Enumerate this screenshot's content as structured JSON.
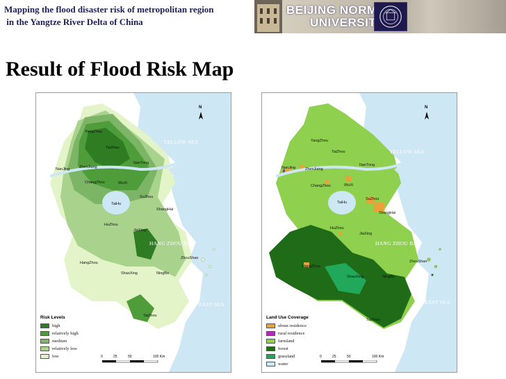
{
  "header": {
    "title_line1": "Mapping the flood disaster risk of metropolitan region",
    "title_line2": " in the Yangtze River Delta of China",
    "university_line1": "BEIJING NORMAL",
    "university_line2": "UNIVERSITY"
  },
  "slide_title": "Result of Flood Risk Map",
  "left_map": {
    "legend_title": "Risk Levels",
    "legend": [
      {
        "label": "high",
        "color": "#2f7d22"
      },
      {
        "label": "relatively high",
        "color": "#4f9c3a"
      },
      {
        "label": "medium",
        "color": "#7bb565"
      },
      {
        "label": "relatively low",
        "color": "#a9d28d"
      },
      {
        "label": "low",
        "color": "#e4f4c9"
      }
    ]
  },
  "right_map": {
    "legend_title": "Land Use Coverage",
    "legend": [
      {
        "label": "ubran residence",
        "color": "#e8a23a"
      },
      {
        "label": "rural residence",
        "color": "#b42ab4"
      },
      {
        "label": "farmland",
        "color": "#8fd14f"
      },
      {
        "label": "forest",
        "color": "#1f6b18"
      },
      {
        "label": "grassland",
        "color": "#22a85a"
      },
      {
        "label": "water",
        "color": "#cde7f5"
      }
    ]
  },
  "map_labels": {
    "yellow_sea": "YELLOW SEA",
    "east_sea": "EAST SEA",
    "hang_zhou_bay": "HANG ZHOU BAY",
    "north": "N",
    "cities": [
      "YangZhou",
      "TaiZhou",
      "NanJing",
      "ZhenJiang",
      "NanTong",
      "ChangZhou",
      "WuXi",
      "SuZhou",
      "TaiHu",
      "ShangHai",
      "HuZhou",
      "JiaXing",
      "HangZhou",
      "ShaoXing",
      "NingBo",
      "ZhouShan",
      "TaiZhou"
    ],
    "scale": [
      "0",
      "25",
      "50",
      "100 Km"
    ]
  },
  "colors": {
    "sea": "#cde7f5",
    "title_navy": "#1f1f5a"
  }
}
